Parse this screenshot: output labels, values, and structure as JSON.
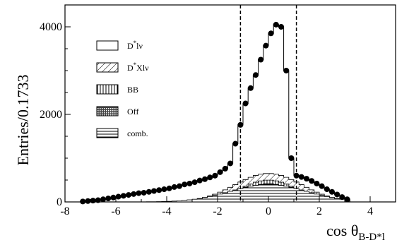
{
  "chart_data": {
    "type": "histogram",
    "title": "",
    "xlabel": {
      "main": "cos θ",
      "sub": "B-D*l"
    },
    "ylabel": "Entries/0.1733",
    "xlim": [
      -8,
      5
    ],
    "ylim": [
      0,
      4500
    ],
    "xticks": [
      -8,
      -6,
      -4,
      -2,
      0,
      2,
      4
    ],
    "yticks": [
      0,
      2000,
      4000
    ],
    "grid": false,
    "legend_position": "upper-left",
    "cut_lines": [
      -1.1,
      1.1
    ],
    "legend": [
      {
        "key": "dstarlnu",
        "label": "D",
        "sup": "*",
        "suffix": "lν",
        "pattern": "blank"
      },
      {
        "key": "dstarxlnu",
        "label": "D",
        "sup": "*",
        "suffix": "Xlν",
        "pattern": "diag"
      },
      {
        "key": "bb",
        "label": "BB",
        "sup": "",
        "suffix": "",
        "pattern": "vert"
      },
      {
        "key": "off",
        "label": "Off",
        "sup": "",
        "suffix": "",
        "pattern": "dense"
      },
      {
        "key": "comb",
        "label": "comb.",
        "sup": "",
        "suffix": "",
        "pattern": "horiz"
      }
    ],
    "data_points": {
      "x": [
        -7.3,
        -7.1,
        -6.9,
        -6.7,
        -6.5,
        -6.3,
        -6.1,
        -5.9,
        -5.7,
        -5.5,
        -5.3,
        -5.1,
        -4.9,
        -4.7,
        -4.5,
        -4.3,
        -4.1,
        -3.9,
        -3.7,
        -3.5,
        -3.3,
        -3.1,
        -2.9,
        -2.7,
        -2.5,
        -2.3,
        -2.1,
        -1.9,
        -1.7,
        -1.5,
        -1.3,
        -1.1,
        -0.9,
        -0.7,
        -0.5,
        -0.3,
        -0.1,
        0.1,
        0.3,
        0.5,
        0.7,
        0.9,
        1.1,
        1.3,
        1.5,
        1.7,
        1.9,
        2.1,
        2.3,
        2.5,
        2.7,
        2.9,
        3.1
      ],
      "y": [
        10,
        20,
        30,
        40,
        60,
        80,
        100,
        120,
        140,
        160,
        180,
        200,
        210,
        230,
        250,
        270,
        290,
        310,
        340,
        360,
        400,
        420,
        450,
        490,
        520,
        560,
        600,
        680,
        760,
        880,
        1330,
        1760,
        2250,
        2600,
        2900,
        3250,
        3570,
        3850,
        4050,
        4000,
        3000,
        1000,
        600,
        570,
        530,
        480,
        420,
        360,
        290,
        230,
        170,
        110,
        60
      ]
    },
    "components_at_peak": {
      "comb": 400,
      "off": 420,
      "bb": 500,
      "dstarxlnu": 650,
      "dstarlnu": 3900
    }
  }
}
